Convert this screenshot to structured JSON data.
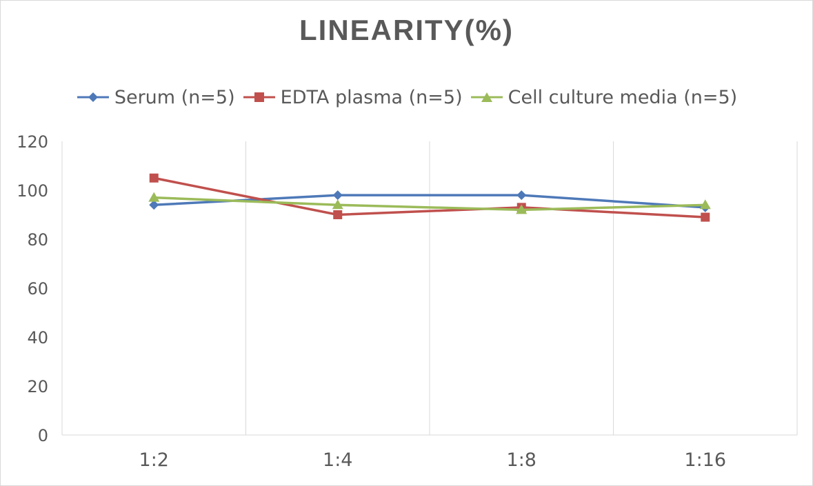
{
  "chart_data": {
    "type": "line",
    "title": "LINEARITY(%)",
    "categories": [
      "1:2",
      "1:4",
      "1:8",
      "1:16"
    ],
    "ylim": [
      0,
      120
    ],
    "yticks": [
      0,
      20,
      40,
      60,
      80,
      100,
      120
    ],
    "grid": "vertical",
    "legend_position": "top",
    "series": [
      {
        "name": "Serum (n=5)",
        "values": [
          94,
          98,
          98,
          93
        ],
        "color": "#4e79b8",
        "marker": "diamond"
      },
      {
        "name": "EDTA plasma (n=5)",
        "values": [
          105,
          90,
          93,
          89
        ],
        "color": "#c0504d",
        "marker": "square"
      },
      {
        "name": "Cell culture media (n=5)",
        "values": [
          97,
          94,
          92,
          94
        ],
        "color": "#9bbb59",
        "marker": "triangle"
      }
    ]
  }
}
